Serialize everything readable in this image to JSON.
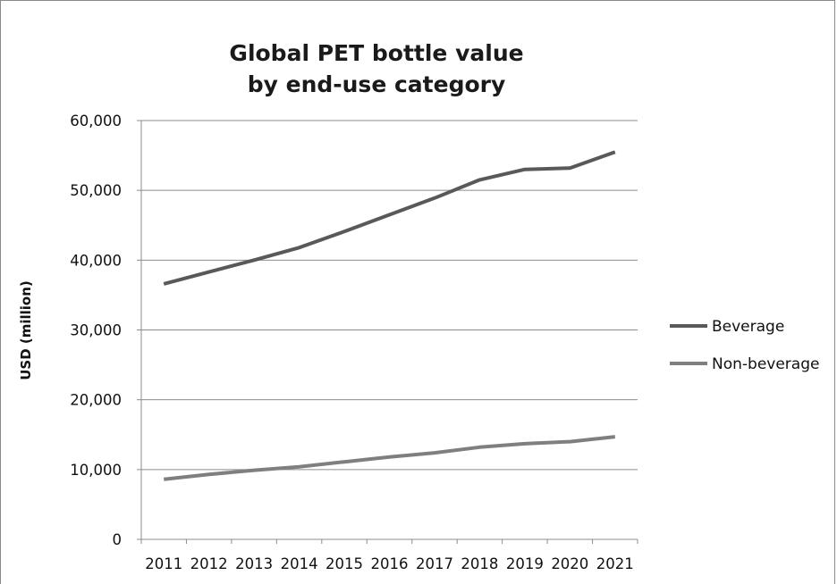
{
  "chart_data": {
    "type": "line",
    "title_lines": [
      "Global PET bottle value",
      "by end-use category"
    ],
    "xlabel": "",
    "ylabel": "USD (million)",
    "categories": [
      "2011",
      "2012",
      "2013",
      "2014",
      "2015",
      "2016",
      "2017",
      "2018",
      "2019",
      "2020",
      "2021"
    ],
    "ylim": [
      0,
      60000
    ],
    "yticks": [
      0,
      10000,
      20000,
      30000,
      40000,
      50000,
      60000
    ],
    "ytick_labels": [
      "0",
      "10,000",
      "20,000",
      "30,000",
      "40,000",
      "50,000",
      "60,000"
    ],
    "grid": true,
    "legend_position": "right",
    "series": [
      {
        "name": "Beverage",
        "color": "#595959",
        "values": [
          36600,
          38300,
          40000,
          41800,
          44100,
          46500,
          48900,
          51500,
          53000,
          53200,
          55500
        ]
      },
      {
        "name": "Non-beverage",
        "color": "#7f7f7f",
        "values": [
          8600,
          9300,
          9900,
          10400,
          11100,
          11800,
          12400,
          13200,
          13700,
          14000,
          14700
        ]
      }
    ]
  }
}
